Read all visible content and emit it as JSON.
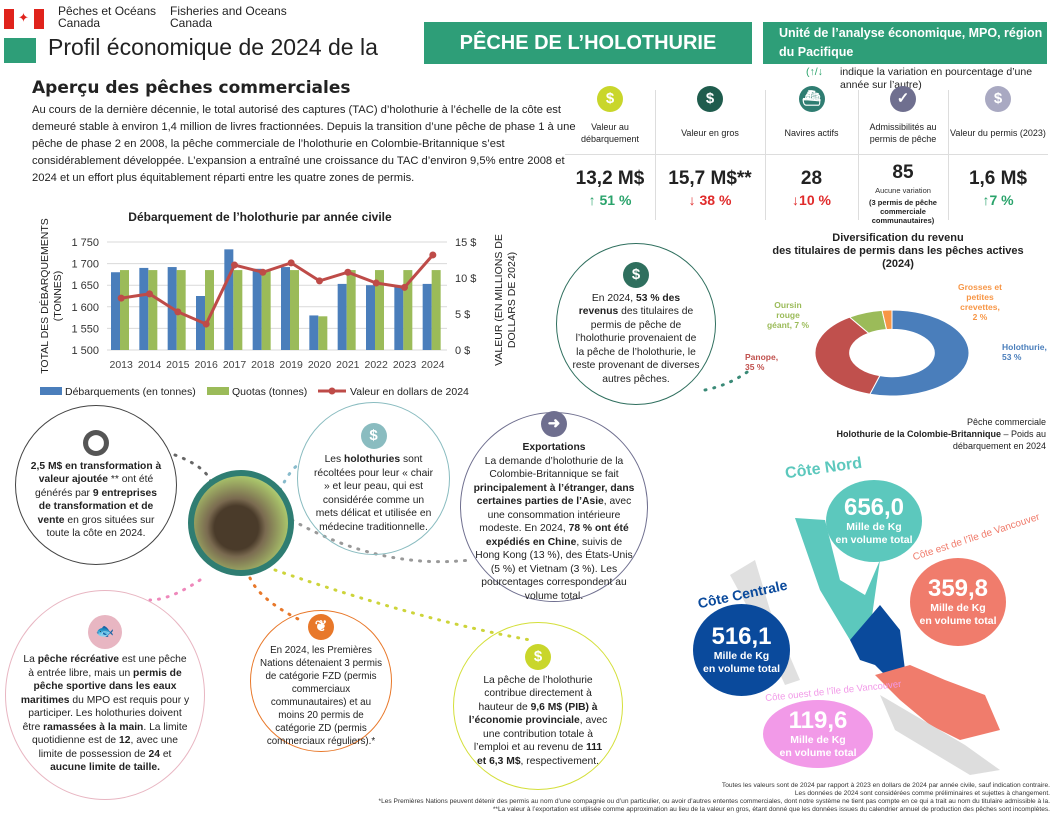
{
  "header": {
    "dept_fr": "Pêches et Océans",
    "dept_fr2": "Canada",
    "dept_en": "Fisheries and Oceans",
    "dept_en2": "Canada",
    "title": "Profil économique de 2024 de la",
    "title_box": "PÊCHE DE L’HOLOTHURIE",
    "unit": "Unité de l’analyse économique, MPO, région du Pacifique",
    "legend_arrows": "(↑/↓",
    "legend_note": "indique la variation en pourcentage d’une année sur l’autre)"
  },
  "overview": {
    "heading": "Aperçu des pêches commerciales",
    "text": "Au cours de la dernière décennie, le total autorisé des captures (TAC) d’holothurie à l’échelle de la côte est demeuré stable à environ 1,4 million de livres fractionnées. Depuis la transition d’une pêche de phase 1 à une pêche de phase 2 en 2008, la pêche commerciale de l’holothurie en Colombie-Britannique s’est considérablement développée. L’expansion a entraîné une croissance du TAC d’environ 9,5% entre 2008 et 2024 et un effort plus équitablement réparti entre les quatre zones de permis."
  },
  "stats": [
    {
      "icon": "dollar-icon",
      "glyph": "$",
      "color": "#c9d62b",
      "label": "Valeur au débarquement",
      "value": "13,2 M$",
      "change": "↑ 51 %",
      "dir": "up"
    },
    {
      "icon": "dollar-icon",
      "glyph": "$",
      "color": "#1f5c4d",
      "label": "Valeur en gros",
      "value": "15,7 M$**",
      "change": "↓ 38 %",
      "dir": "down"
    },
    {
      "icon": "boat-icon",
      "glyph": "⛴",
      "color": "#2f7d72",
      "label": "Navires actifs",
      "value": "28",
      "change": "↓10 %",
      "dir": "down"
    },
    {
      "icon": "checkmark-icon",
      "glyph": "✓",
      "color": "#6f6f8f",
      "label": "Admissibilités au permis de pêche",
      "value": "85",
      "change": "Aucune variation",
      "note": "(3 permis de pêche commerciale communautaires)",
      "dir": "none"
    },
    {
      "icon": "dollar-icon",
      "glyph": "$",
      "color": "#a9a9c2",
      "label": "Valeur du permis (2023)",
      "value": "1,6 M$",
      "change": "↑7 %",
      "dir": "up"
    }
  ],
  "colors": {
    "green": "#2e9e78",
    "up": "#2aa36b",
    "down": "#e02b2b",
    "blue_bar": "#4a7ebb",
    "green_bar": "#9bbb59",
    "line": "#be4b48"
  },
  "chart_data": {
    "type": "bar",
    "title": "Débarquement de l’holothurie par année civile",
    "ylabel": "TOTAL DES DÉBARQUEMENTS (TONNES)",
    "y2label": "VALEUR (EN MILLIONS DE DOLLARS DE 2024)",
    "ylim": [
      1500,
      1750
    ],
    "y2lim": [
      0,
      15
    ],
    "yticks": [
      "1 500",
      "1 550",
      "1 600",
      "1 650",
      "1 700",
      "1 750"
    ],
    "y2ticks": [
      "0 $",
      "5 $",
      "10 $",
      "15 $"
    ],
    "categories": [
      "2013",
      "2014",
      "2015",
      "2016",
      "2017",
      "2018",
      "2019",
      "2020",
      "2021",
      "2022",
      "2023",
      "2024"
    ],
    "series": [
      {
        "name": "Débarquements (en tonnes)",
        "type": "bar",
        "color": "#4a7ebb",
        "values": [
          1680,
          1690,
          1692,
          1625,
          1733,
          1688,
          1692,
          1580,
          1653,
          1650,
          1648,
          1653
        ]
      },
      {
        "name": "Quotas (tonnes)",
        "type": "bar",
        "color": "#9bbb59",
        "values": [
          1685,
          1685,
          1685,
          1685,
          1685,
          1685,
          1685,
          1578,
          1685,
          1685,
          1685,
          1685
        ]
      },
      {
        "name": "Valeur en dollars de 2024",
        "type": "line",
        "axis": "right",
        "color": "#be4b48",
        "values": [
          7.2,
          7.8,
          5.3,
          3.6,
          11.8,
          10.8,
          12.1,
          9.6,
          10.8,
          9.3,
          8.7,
          13.2
        ]
      }
    ],
    "grid": true,
    "legend": "bottom"
  },
  "donut": {
    "title1": "Diversification du revenu",
    "title2": "des titulaires de permis dans les pêches actives",
    "title3": "(2024)",
    "slices": [
      {
        "label": "Holothurie, 53 %",
        "value": 53,
        "color": "#4a7ebb"
      },
      {
        "label": "Panope, 35 %",
        "value": 35,
        "color": "#c0504d"
      },
      {
        "label": "Oursin rouge géant, 7 %",
        "value": 7,
        "color": "#9bbb59"
      },
      {
        "label": "Grosses et petites crevettes, 2 %",
        "value": 2,
        "color": "#f79646"
      }
    ]
  },
  "circles": {
    "revenue": [
      [
        "En 2024, ",
        0
      ],
      [
        "53 % des revenus",
        1
      ],
      [
        " des titulaires de permis de pêche de l’holothurie provenaient de la pêche de l’holothurie, le reste provenant de diverses autres pêches.",
        0
      ]
    ],
    "processing": [
      [
        "2,5 M$ en transformation à valeur ajoutée",
        1
      ],
      [
        " ** ont été générés par ",
        0
      ],
      [
        "9 entreprises de transformation et de vente",
        1
      ],
      [
        " en gros situées sur toute la côte en 2024.",
        0
      ]
    ],
    "harvest": [
      [
        "Les ",
        0
      ],
      [
        "holothuries",
        1
      ],
      [
        " sont récoltées pour leur « chair » et leur peau, qui est considérée comme un mets délicat et utilisée en médecine traditionnelle.",
        0
      ]
    ],
    "exports_title": "Exportations",
    "exports": [
      [
        "La demande d’holothurie de la Colombie-Britannique se fait ",
        0
      ],
      [
        "principalement à l’étranger, dans certaines parties de l’Asie",
        1
      ],
      [
        ", avec une consommation intérieure modeste. En 2024, ",
        0
      ],
      [
        "78 % ont été expédiés en Chine",
        1
      ],
      [
        ", suivis de Hong Kong (13 %), des États-Unis (5 %) et Vietnam (3 %). Les pourcentages correspondent au volume total.",
        0
      ]
    ],
    "recreational": [
      [
        "La ",
        0
      ],
      [
        "pêche récréative",
        1
      ],
      [
        " est une pêche à entrée libre, mais un ",
        0
      ],
      [
        "permis de pêche sportive dans les eaux maritimes",
        1
      ],
      [
        " du MPO est requis pour y participer. Les holothuries doivent être ",
        0
      ],
      [
        "ramassées à la main",
        1
      ],
      [
        ". La limite quotidienne est de ",
        0
      ],
      [
        "12",
        1
      ],
      [
        ", avec une limite de possession de ",
        0
      ],
      [
        "24",
        1
      ],
      [
        " et ",
        0
      ],
      [
        "aucune limite de taille.",
        1
      ]
    ],
    "first_nations": [
      [
        "En 2024, les Premières Nations détenaient 3 permis de catégorie FZD (permis commerciaux communautaires) et au moins 20 permis de catégorie ZD (permis commerciaux réguliers).*",
        0
      ]
    ],
    "economy": [
      [
        "La pêche de l’holothurie contribue directement à hauteur de ",
        0
      ],
      [
        "9,6 M$ (PIB) à l’économie provinciale",
        1
      ],
      [
        ", avec une contribution totale à l’emploi et au revenu de ",
        0
      ],
      [
        "111 et 6,3 M$",
        1
      ],
      [
        ", respectivement.",
        0
      ]
    ]
  },
  "map": {
    "title1": "Pêche commerciale",
    "title2_bold": "Holothurie de la Colombie-Britannique",
    "title2_rest": " – Poids au débarquement en 2024",
    "unit": "Mille de Kg",
    "unit2": "en volume total",
    "regions": [
      {
        "name": "Côte Nord",
        "value": "656,0",
        "color": "#5cc8bd"
      },
      {
        "name": "Côte est de l’île de Vancouver",
        "value": "359,8",
        "color": "#f07c6c"
      },
      {
        "name": "Côte Centrale",
        "value": "516,1",
        "color": "#0a4a9c"
      },
      {
        "name": "Côte ouest de l’île de Vancouver",
        "value": "119,6",
        "color": "#f29ae8"
      }
    ]
  },
  "footnotes": [
    "Toutes les valeurs sont de 2024 par rapport à 2023 en dollars de 2024 par année civile, sauf indication contraire.",
    "Les données de 2024 sont considérées comme préliminaires et sujettes à changement.",
    "*Les Premières Nations peuvent détenir des permis au nom d’une compagnie ou d’un particulier, ou avoir d’autres ententes commerciales, dont notre système ne tient pas compte en ce qui a trait au nom du titulaire admissible à la.",
    "**La valeur à l’exportation est utilisée comme approximation au lieu de la valeur en gros, étant donné que les données issues du calendrier annuel de production des pêches sont incomplètes."
  ]
}
